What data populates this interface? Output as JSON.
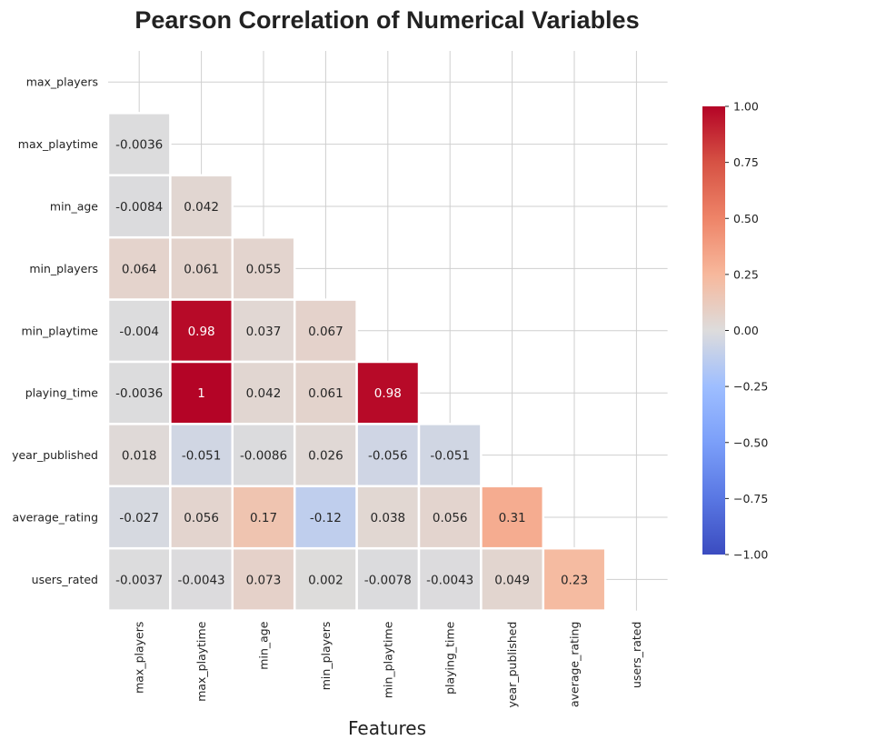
{
  "chart_data": {
    "type": "heatmap",
    "title": "Pearson Correlation of Numerical Variables",
    "xlabel": "Features",
    "ylabel": "",
    "variables": [
      "max_players",
      "max_playtime",
      "min_age",
      "min_players",
      "min_playtime",
      "playing_time",
      "year_published",
      "average_rating",
      "users_rated"
    ],
    "mask": "upper-triangle-including-diagonal",
    "cells": [
      {
        "row": "max_playtime",
        "col": "max_players",
        "value": -0.0036,
        "label": "-0.0036"
      },
      {
        "row": "min_age",
        "col": "max_players",
        "value": -0.0084,
        "label": "-0.0084"
      },
      {
        "row": "min_age",
        "col": "max_playtime",
        "value": 0.042,
        "label": "0.042"
      },
      {
        "row": "min_players",
        "col": "max_players",
        "value": 0.064,
        "label": "0.064"
      },
      {
        "row": "min_players",
        "col": "max_playtime",
        "value": 0.061,
        "label": "0.061"
      },
      {
        "row": "min_players",
        "col": "min_age",
        "value": 0.055,
        "label": "0.055"
      },
      {
        "row": "min_playtime",
        "col": "max_players",
        "value": -0.004,
        "label": "-0.004"
      },
      {
        "row": "min_playtime",
        "col": "max_playtime",
        "value": 0.98,
        "label": "0.98"
      },
      {
        "row": "min_playtime",
        "col": "min_age",
        "value": 0.037,
        "label": "0.037"
      },
      {
        "row": "min_playtime",
        "col": "min_players",
        "value": 0.067,
        "label": "0.067"
      },
      {
        "row": "playing_time",
        "col": "max_players",
        "value": -0.0036,
        "label": "-0.0036"
      },
      {
        "row": "playing_time",
        "col": "max_playtime",
        "value": 1.0,
        "label": "1"
      },
      {
        "row": "playing_time",
        "col": "min_age",
        "value": 0.042,
        "label": "0.042"
      },
      {
        "row": "playing_time",
        "col": "min_players",
        "value": 0.061,
        "label": "0.061"
      },
      {
        "row": "playing_time",
        "col": "min_playtime",
        "value": 0.98,
        "label": "0.98"
      },
      {
        "row": "year_published",
        "col": "max_players",
        "value": 0.018,
        "label": "0.018"
      },
      {
        "row": "year_published",
        "col": "max_playtime",
        "value": -0.051,
        "label": "-0.051"
      },
      {
        "row": "year_published",
        "col": "min_age",
        "value": -0.0086,
        "label": "-0.0086"
      },
      {
        "row": "year_published",
        "col": "min_players",
        "value": 0.026,
        "label": "0.026"
      },
      {
        "row": "year_published",
        "col": "min_playtime",
        "value": -0.056,
        "label": "-0.056"
      },
      {
        "row": "year_published",
        "col": "playing_time",
        "value": -0.051,
        "label": "-0.051"
      },
      {
        "row": "average_rating",
        "col": "max_players",
        "value": -0.027,
        "label": "-0.027"
      },
      {
        "row": "average_rating",
        "col": "max_playtime",
        "value": 0.056,
        "label": "0.056"
      },
      {
        "row": "average_rating",
        "col": "min_age",
        "value": 0.17,
        "label": "0.17"
      },
      {
        "row": "average_rating",
        "col": "min_players",
        "value": -0.12,
        "label": "-0.12"
      },
      {
        "row": "average_rating",
        "col": "min_playtime",
        "value": 0.038,
        "label": "0.038"
      },
      {
        "row": "average_rating",
        "col": "playing_time",
        "value": 0.056,
        "label": "0.056"
      },
      {
        "row": "average_rating",
        "col": "year_published",
        "value": 0.31,
        "label": "0.31"
      },
      {
        "row": "users_rated",
        "col": "max_players",
        "value": -0.0037,
        "label": "-0.0037"
      },
      {
        "row": "users_rated",
        "col": "max_playtime",
        "value": -0.0043,
        "label": "-0.0043"
      },
      {
        "row": "users_rated",
        "col": "min_age",
        "value": 0.073,
        "label": "0.073"
      },
      {
        "row": "users_rated",
        "col": "min_players",
        "value": 0.002,
        "label": "0.002"
      },
      {
        "row": "users_rated",
        "col": "min_playtime",
        "value": -0.0078,
        "label": "-0.0078"
      },
      {
        "row": "users_rated",
        "col": "playing_time",
        "value": -0.0043,
        "label": "-0.0043"
      },
      {
        "row": "users_rated",
        "col": "year_published",
        "value": 0.049,
        "label": "0.049"
      },
      {
        "row": "users_rated",
        "col": "average_rating",
        "value": 0.23,
        "label": "0.23"
      }
    ],
    "colorbar": {
      "colormap": "coolwarm",
      "range": [
        -1.0,
        1.0
      ],
      "ticks": [
        "1.00",
        "0.75",
        "0.50",
        "0.25",
        "0.00",
        "−0.25",
        "−0.50",
        "−0.75",
        "−1.00"
      ],
      "placement": "right"
    },
    "grid": true
  }
}
